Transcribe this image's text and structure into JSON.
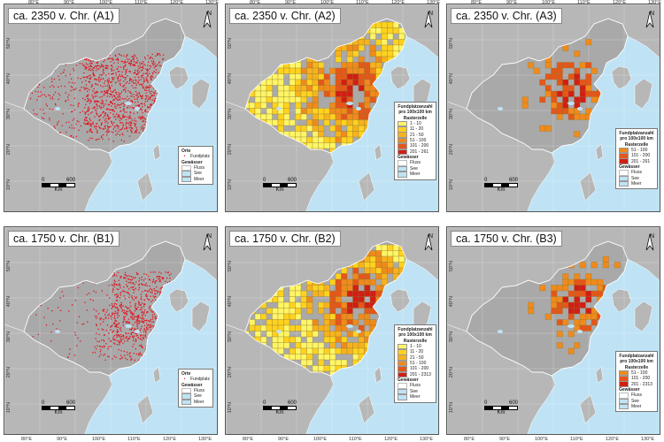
{
  "panels": [
    {
      "id": "a1",
      "title": "ca. 2350 v. Chr. (A1)",
      "type": "dots",
      "legend": "sites"
    },
    {
      "id": "a2",
      "title": "ca. 2350 v. Chr. (A2)",
      "type": "grid",
      "legend": "counts_a"
    },
    {
      "id": "a3",
      "title": "ca. 2350 v. Chr. (A3)",
      "type": "gridhigh",
      "legend": "counts_a_high"
    },
    {
      "id": "b1",
      "title": "ca. 1750 v. Chr. (B1)",
      "type": "dots",
      "legend": "sites"
    },
    {
      "id": "b2",
      "title": "ca. 1750 v. Chr. (B2)",
      "type": "grid",
      "legend": "counts_b"
    },
    {
      "id": "b3",
      "title": "ca. 1750 v. Chr. (B3)",
      "type": "gridhigh",
      "legend": "counts_b_high"
    }
  ],
  "north_label": "N",
  "legend_sites": {
    "heading_places": "Orte",
    "site": "Fundplatz",
    "heading_water": "Gewässer",
    "river": "Fluss",
    "lake": "See",
    "sea": "Meer"
  },
  "legend_counts": {
    "heading": "Fundplatzanzahl pro 100x100 km Rasterzelle",
    "heading_water": "Gewässer",
    "river": "Fluss",
    "lake": "See",
    "sea": "Meer"
  },
  "classes_a": [
    "1 - 10",
    "11 - 20",
    "21 - 50",
    "51 - 100",
    "101 - 200",
    "201 - 261"
  ],
  "classes_a_high": [
    "51 - 100",
    "101 - 200",
    "201 - 261"
  ],
  "classes_b": [
    "1 - 10",
    "11 - 20",
    "21 - 50",
    "51 - 100",
    "101 - 200",
    "201 - 2313"
  ],
  "classes_b_high": [
    "51 - 100",
    "101 - 200",
    "201 - 2313"
  ],
  "class_colors": [
    "#fff566",
    "#ffd21f",
    "#f7b21e",
    "#f08a1c",
    "#e5561a",
    "#d21e14"
  ],
  "site_color": "#e0141e",
  "land_color": "#b7b7b7",
  "china_color": "#a9a9a9",
  "water_color": "#bfe3f5",
  "scale": {
    "zero": "0",
    "max": "600",
    "unit": "Km"
  },
  "lat_labels": [
    "50°N",
    "40°N",
    "30°N",
    "20°N",
    "10°N"
  ],
  "lon_labels_top": [
    "80°E",
    "90°E",
    "100°E",
    "110°E",
    "120°E",
    "130°E"
  ],
  "lon_labels_bottom": [
    "80°E",
    "90°E",
    "100°E",
    "110°E",
    "120°E",
    "130°E"
  ]
}
